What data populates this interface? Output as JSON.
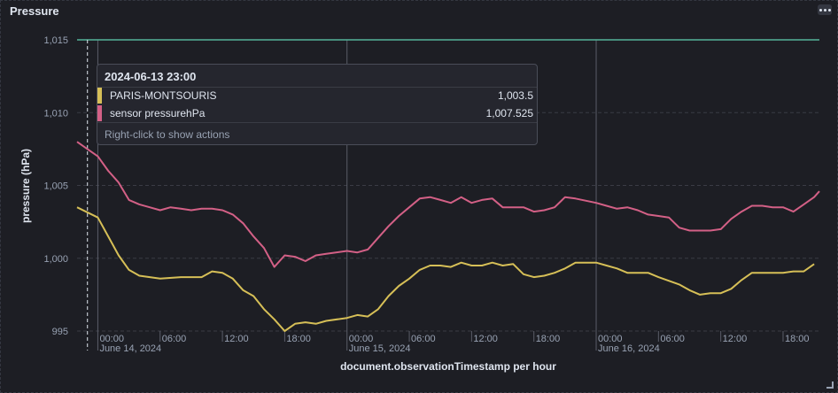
{
  "panel": {
    "title": "Pressure",
    "menu_icon": "ellipsis-icon"
  },
  "chart_data": {
    "type": "line",
    "title": "Pressure",
    "xlabel": "document.observationTimestamp per hour",
    "ylabel": "pressure (hPa)",
    "ylim": [
      995,
      1015
    ],
    "xlim": [
      "2024-06-13T22:00",
      "2024-06-16T21:30"
    ],
    "yticks": [
      {
        "value": 1015,
        "label": "1,015"
      },
      {
        "value": 1010,
        "label": "1,010"
      },
      {
        "value": 1005,
        "label": "1,005"
      },
      {
        "value": 1000,
        "label": "1,000"
      },
      {
        "value": 995,
        "label": "995"
      }
    ],
    "xticks": [
      {
        "time": "2024-06-14T00:00",
        "label": "00:00",
        "sublabel": "June 14, 2024",
        "day_start": true
      },
      {
        "time": "2024-06-14T06:00",
        "label": "06:00",
        "sublabel": "",
        "day_start": false
      },
      {
        "time": "2024-06-14T12:00",
        "label": "12:00",
        "sublabel": "",
        "day_start": false
      },
      {
        "time": "2024-06-14T18:00",
        "label": "18:00",
        "sublabel": "",
        "day_start": false
      },
      {
        "time": "2024-06-15T00:00",
        "label": "00:00",
        "sublabel": "June 15, 2024",
        "day_start": true
      },
      {
        "time": "2024-06-15T06:00",
        "label": "06:00",
        "sublabel": "",
        "day_start": false
      },
      {
        "time": "2024-06-15T12:00",
        "label": "12:00",
        "sublabel": "",
        "day_start": false
      },
      {
        "time": "2024-06-15T18:00",
        "label": "18:00",
        "sublabel": "",
        "day_start": false
      },
      {
        "time": "2024-06-16T00:00",
        "label": "00:00",
        "sublabel": "June 16, 2024",
        "day_start": true
      },
      {
        "time": "2024-06-16T06:00",
        "label": "06:00",
        "sublabel": "",
        "day_start": false
      },
      {
        "time": "2024-06-16T12:00",
        "label": "12:00",
        "sublabel": "",
        "day_start": false
      },
      {
        "time": "2024-06-16T18:00",
        "label": "18:00",
        "sublabel": "",
        "day_start": false
      }
    ],
    "cursor_time": "2024-06-13T23:00",
    "reference_line": {
      "value": 1015,
      "color": "#54b399"
    },
    "series": [
      {
        "name": "PARIS-MONTSOURIS",
        "color": "#d6bf57",
        "points": [
          [
            "2024-06-13T22:00",
            1003.5
          ],
          [
            "2024-06-14T00:00",
            1002.8
          ],
          [
            "2024-06-14T01:00",
            1001.5
          ],
          [
            "2024-06-14T02:00",
            1000.2
          ],
          [
            "2024-06-14T03:00",
            999.2
          ],
          [
            "2024-06-14T04:00",
            998.8
          ],
          [
            "2024-06-14T06:00",
            998.6
          ],
          [
            "2024-06-14T08:00",
            998.7
          ],
          [
            "2024-06-14T10:00",
            998.7
          ],
          [
            "2024-06-14T11:00",
            999.1
          ],
          [
            "2024-06-14T12:00",
            999.0
          ],
          [
            "2024-06-14T13:00",
            998.6
          ],
          [
            "2024-06-14T14:00",
            997.8
          ],
          [
            "2024-06-14T15:00",
            997.4
          ],
          [
            "2024-06-14T16:00",
            996.5
          ],
          [
            "2024-06-14T17:00",
            995.8
          ],
          [
            "2024-06-14T18:00",
            995.0
          ],
          [
            "2024-06-14T19:00",
            995.5
          ],
          [
            "2024-06-14T20:00",
            995.6
          ],
          [
            "2024-06-14T21:00",
            995.5
          ],
          [
            "2024-06-14T22:00",
            995.7
          ],
          [
            "2024-06-15T00:00",
            995.9
          ],
          [
            "2024-06-15T01:00",
            996.1
          ],
          [
            "2024-06-15T02:00",
            996.0
          ],
          [
            "2024-06-15T03:00",
            996.5
          ],
          [
            "2024-06-15T04:00",
            997.4
          ],
          [
            "2024-06-15T05:00",
            998.1
          ],
          [
            "2024-06-15T06:00",
            998.6
          ],
          [
            "2024-06-15T07:00",
            999.2
          ],
          [
            "2024-06-15T08:00",
            999.5
          ],
          [
            "2024-06-15T09:00",
            999.5
          ],
          [
            "2024-06-15T10:00",
            999.4
          ],
          [
            "2024-06-15T11:00",
            999.7
          ],
          [
            "2024-06-15T12:00",
            999.5
          ],
          [
            "2024-06-15T13:00",
            999.5
          ],
          [
            "2024-06-15T14:00",
            999.7
          ],
          [
            "2024-06-15T15:00",
            999.5
          ],
          [
            "2024-06-15T16:00",
            999.6
          ],
          [
            "2024-06-15T17:00",
            998.9
          ],
          [
            "2024-06-15T18:00",
            998.7
          ],
          [
            "2024-06-15T19:00",
            998.8
          ],
          [
            "2024-06-15T20:00",
            999.0
          ],
          [
            "2024-06-15T21:00",
            999.3
          ],
          [
            "2024-06-15T22:00",
            999.7
          ],
          [
            "2024-06-16T00:00",
            999.7
          ],
          [
            "2024-06-16T01:00",
            999.5
          ],
          [
            "2024-06-16T02:00",
            999.3
          ],
          [
            "2024-06-16T03:00",
            999.0
          ],
          [
            "2024-06-16T05:00",
            999.0
          ],
          [
            "2024-06-16T06:00",
            998.7
          ],
          [
            "2024-06-16T08:00",
            998.2
          ],
          [
            "2024-06-16T09:00",
            997.8
          ],
          [
            "2024-06-16T10:00",
            997.5
          ],
          [
            "2024-06-16T11:00",
            997.6
          ],
          [
            "2024-06-16T12:00",
            997.6
          ],
          [
            "2024-06-16T13:00",
            997.9
          ],
          [
            "2024-06-16T14:00",
            998.5
          ],
          [
            "2024-06-16T15:00",
            999.0
          ],
          [
            "2024-06-16T16:00",
            999.0
          ],
          [
            "2024-06-16T17:00",
            999.0
          ],
          [
            "2024-06-16T18:00",
            999.0
          ],
          [
            "2024-06-16T19:00",
            999.1
          ],
          [
            "2024-06-16T20:00",
            999.1
          ],
          [
            "2024-06-16T21:00",
            999.6
          ]
        ]
      },
      {
        "name": "sensor pressurehPa",
        "color": "#d36086",
        "points": [
          [
            "2024-06-13T22:00",
            1008.0
          ],
          [
            "2024-06-13T23:00",
            1007.5
          ],
          [
            "2024-06-14T00:00",
            1007.0
          ],
          [
            "2024-06-14T01:00",
            1006.0
          ],
          [
            "2024-06-14T02:00",
            1005.2
          ],
          [
            "2024-06-14T03:00",
            1004.0
          ],
          [
            "2024-06-14T04:00",
            1003.7
          ],
          [
            "2024-06-14T05:00",
            1003.5
          ],
          [
            "2024-06-14T06:00",
            1003.3
          ],
          [
            "2024-06-14T07:00",
            1003.5
          ],
          [
            "2024-06-14T08:00",
            1003.4
          ],
          [
            "2024-06-14T09:00",
            1003.3
          ],
          [
            "2024-06-14T10:00",
            1003.4
          ],
          [
            "2024-06-14T11:00",
            1003.4
          ],
          [
            "2024-06-14T12:00",
            1003.3
          ],
          [
            "2024-06-14T13:00",
            1003.0
          ],
          [
            "2024-06-14T14:00",
            1002.4
          ],
          [
            "2024-06-14T15:00",
            1001.5
          ],
          [
            "2024-06-14T16:00",
            1000.7
          ],
          [
            "2024-06-14T17:00",
            999.4
          ],
          [
            "2024-06-14T18:00",
            1000.2
          ],
          [
            "2024-06-14T19:00",
            1000.1
          ],
          [
            "2024-06-14T20:00",
            999.8
          ],
          [
            "2024-06-14T21:00",
            1000.2
          ],
          [
            "2024-06-14T22:00",
            1000.3
          ],
          [
            "2024-06-15T00:00",
            1000.5
          ],
          [
            "2024-06-15T01:00",
            1000.4
          ],
          [
            "2024-06-15T02:00",
            1000.6
          ],
          [
            "2024-06-15T03:00",
            1001.4
          ],
          [
            "2024-06-15T04:00",
            1002.2
          ],
          [
            "2024-06-15T05:00",
            1002.9
          ],
          [
            "2024-06-15T06:00",
            1003.5
          ],
          [
            "2024-06-15T07:00",
            1004.1
          ],
          [
            "2024-06-15T08:00",
            1004.2
          ],
          [
            "2024-06-15T09:00",
            1004.0
          ],
          [
            "2024-06-15T10:00",
            1003.8
          ],
          [
            "2024-06-15T11:00",
            1004.2
          ],
          [
            "2024-06-15T12:00",
            1003.8
          ],
          [
            "2024-06-15T13:00",
            1004.0
          ],
          [
            "2024-06-15T14:00",
            1004.1
          ],
          [
            "2024-06-15T15:00",
            1003.5
          ],
          [
            "2024-06-15T16:00",
            1003.5
          ],
          [
            "2024-06-15T17:00",
            1003.5
          ],
          [
            "2024-06-15T18:00",
            1003.2
          ],
          [
            "2024-06-15T19:00",
            1003.3
          ],
          [
            "2024-06-15T20:00",
            1003.5
          ],
          [
            "2024-06-15T21:00",
            1004.2
          ],
          [
            "2024-06-15T22:00",
            1004.1
          ],
          [
            "2024-06-16T00:00",
            1003.8
          ],
          [
            "2024-06-16T01:00",
            1003.6
          ],
          [
            "2024-06-16T02:00",
            1003.4
          ],
          [
            "2024-06-16T03:00",
            1003.5
          ],
          [
            "2024-06-16T04:00",
            1003.3
          ],
          [
            "2024-06-16T05:00",
            1003.0
          ],
          [
            "2024-06-16T06:00",
            1002.9
          ],
          [
            "2024-06-16T07:00",
            1002.8
          ],
          [
            "2024-06-16T08:00",
            1002.1
          ],
          [
            "2024-06-16T09:00",
            1001.9
          ],
          [
            "2024-06-16T11:00",
            1001.9
          ],
          [
            "2024-06-16T12:00",
            1002.0
          ],
          [
            "2024-06-16T13:00",
            1002.7
          ],
          [
            "2024-06-16T14:00",
            1003.2
          ],
          [
            "2024-06-16T15:00",
            1003.6
          ],
          [
            "2024-06-16T16:00",
            1003.6
          ],
          [
            "2024-06-16T17:00",
            1003.5
          ],
          [
            "2024-06-16T18:00",
            1003.5
          ],
          [
            "2024-06-16T19:00",
            1003.2
          ],
          [
            "2024-06-16T20:00",
            1003.7
          ],
          [
            "2024-06-16T21:00",
            1004.2
          ],
          [
            "2024-06-16T21:30",
            1004.6
          ]
        ]
      }
    ],
    "tooltip": {
      "header": "2024-06-13 23:00",
      "rows": [
        {
          "name": "PARIS-MONTSOURIS",
          "value": "1,003.5",
          "color": "#d6bf57"
        },
        {
          "name": "sensor pressurehPa",
          "value": "1,007.525",
          "color": "#d36086"
        }
      ],
      "footer": "Right-click to show actions"
    }
  }
}
